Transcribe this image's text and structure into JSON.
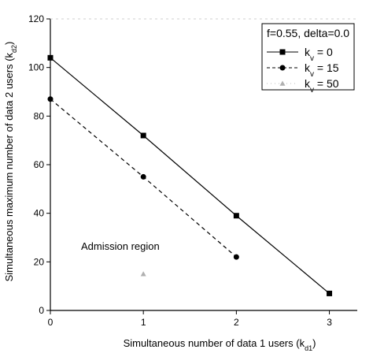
{
  "chart_data": {
    "type": "line",
    "title": "",
    "xlabel": "Simultaneous number of data 1 users (k",
    "xlabel_sub": "d1",
    "xlabel_tail": ")",
    "ylabel": "Simultaneous maximum number of data 2 users (k",
    "ylabel_sub": "d2",
    "xlim": [
      0,
      3.3
    ],
    "ylim": [
      0,
      120
    ],
    "xticks": [
      0,
      1,
      2,
      3
    ],
    "yticks": [
      0,
      20,
      40,
      60,
      80,
      100,
      120
    ],
    "grid": false,
    "legend_position": "top-right",
    "legend_title": "f=0.55, delta=0.0",
    "annotation": "Admission region",
    "series": [
      {
        "name": "k",
        "name_sub": "v",
        "name_tail": " = 0",
        "marker": "square",
        "line": "solid",
        "color": "#000000",
        "x": [
          0,
          1,
          2,
          3
        ],
        "y": [
          104,
          72,
          39,
          7
        ]
      },
      {
        "name": "k",
        "name_sub": "v",
        "name_tail": " = 15",
        "marker": "circle",
        "line": "dashed",
        "color": "#000000",
        "x": [
          0,
          1,
          2
        ],
        "y": [
          87,
          55,
          22
        ]
      },
      {
        "name": "k",
        "name_sub": "v",
        "name_tail": " = 50",
        "marker": "triangle",
        "line": "none",
        "color": "#b0b0b0",
        "x": [
          1
        ],
        "y": [
          15
        ]
      }
    ]
  }
}
